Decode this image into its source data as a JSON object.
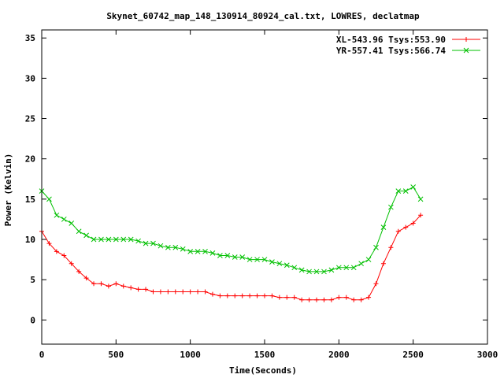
{
  "chart_data": {
    "type": "scatter",
    "title": "Skynet_60742_map_148_130914_80924_cal.txt, LOWRES, declatmap",
    "xlabel": "Time(Seconds)",
    "ylabel": "Power (Kelvin)",
    "xlim": [
      0,
      3000
    ],
    "ylim": [
      -3,
      36
    ],
    "xticks": [
      "0",
      "500",
      "1000",
      "1500",
      "2000",
      "2500",
      "3000"
    ],
    "yticks": [
      "0",
      "5",
      "10",
      "15",
      "20",
      "25",
      "30",
      "35"
    ],
    "grid": false,
    "legend_position": "top-right",
    "series": [
      {
        "name": "XL-543.96 Tsys:553.90",
        "marker": "plus",
        "color": "#ff0000",
        "x": [
          0,
          50,
          100,
          150,
          200,
          250,
          300,
          350,
          400,
          450,
          500,
          550,
          600,
          650,
          700,
          750,
          800,
          850,
          900,
          950,
          1000,
          1050,
          1100,
          1150,
          1200,
          1250,
          1300,
          1350,
          1400,
          1450,
          1500,
          1550,
          1600,
          1650,
          1700,
          1750,
          1800,
          1850,
          1900,
          1950,
          2000,
          2050,
          2100,
          2150,
          2200,
          2250,
          2300,
          2350,
          2400,
          2450,
          2500,
          2550
        ],
        "y": [
          11,
          9.5,
          8.5,
          8,
          7,
          6,
          5.2,
          4.5,
          4.5,
          4.2,
          4.5,
          4.2,
          4,
          3.8,
          3.8,
          3.5,
          3.5,
          3.5,
          3.5,
          3.5,
          3.5,
          3.5,
          3.5,
          3.2,
          3,
          3,
          3,
          3,
          3,
          3,
          3,
          3,
          2.8,
          2.8,
          2.8,
          2.5,
          2.5,
          2.5,
          2.5,
          2.5,
          2.8,
          2.8,
          2.5,
          2.5,
          2.8,
          4.5,
          7,
          9,
          11,
          11.5,
          12,
          13
        ]
      },
      {
        "name": "YR-557.41 Tsys:566.74",
        "marker": "x",
        "color": "#00c000",
        "x": [
          0,
          50,
          100,
          150,
          200,
          250,
          300,
          350,
          400,
          450,
          500,
          550,
          600,
          650,
          700,
          750,
          800,
          850,
          900,
          950,
          1000,
          1050,
          1100,
          1150,
          1200,
          1250,
          1300,
          1350,
          1400,
          1450,
          1500,
          1550,
          1600,
          1650,
          1700,
          1750,
          1800,
          1850,
          1900,
          1950,
          2000,
          2050,
          2100,
          2150,
          2200,
          2250,
          2300,
          2350,
          2400,
          2450,
          2500,
          2550
        ],
        "y": [
          16,
          15,
          13,
          12.5,
          12,
          11,
          10.5,
          10,
          10,
          10,
          10,
          10,
          10,
          9.8,
          9.5,
          9.5,
          9.2,
          9,
          9,
          8.8,
          8.5,
          8.5,
          8.5,
          8.3,
          8,
          8,
          7.8,
          7.8,
          7.5,
          7.5,
          7.5,
          7.2,
          7,
          6.8,
          6.5,
          6.2,
          6,
          6,
          6,
          6.2,
          6.5,
          6.5,
          6.5,
          7,
          7.5,
          9,
          11.5,
          14,
          16,
          16,
          16.5,
          15
        ]
      }
    ]
  }
}
